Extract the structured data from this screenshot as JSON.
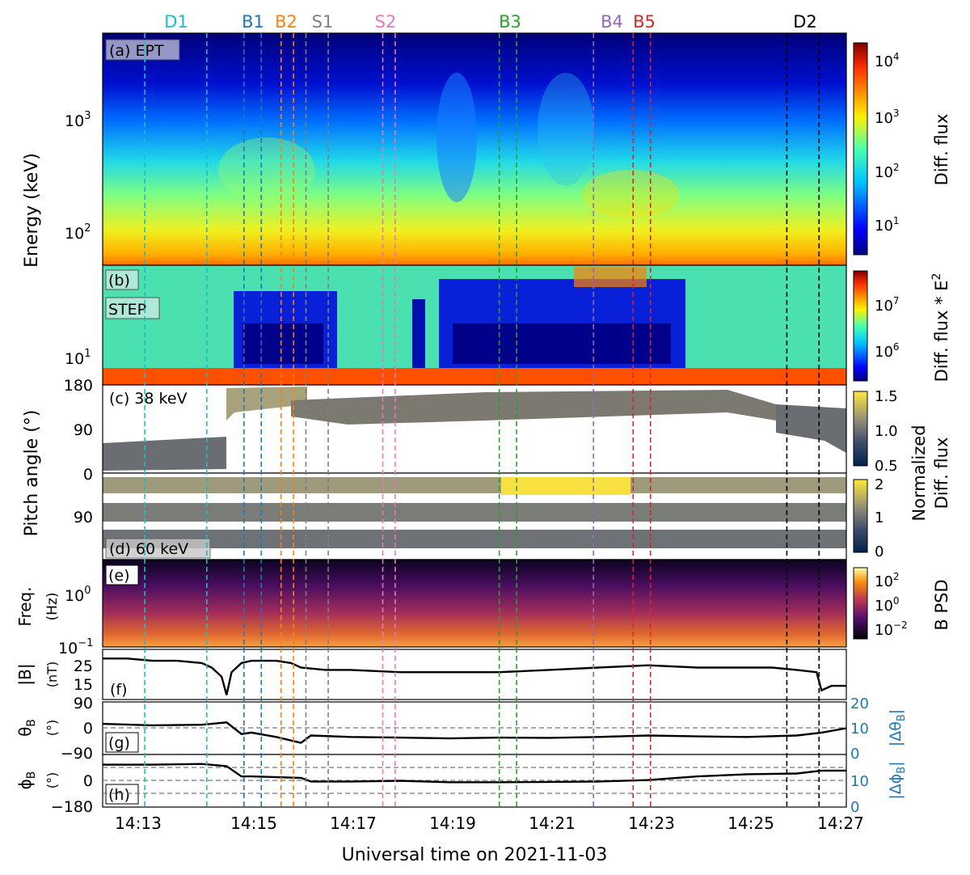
{
  "figure": {
    "xlabel": "Universal time on 2021-11-03",
    "xticks": [
      "14:13",
      "14:15",
      "14:17",
      "14:19",
      "14:21",
      "14:23",
      "14:25",
      "14:27"
    ]
  },
  "events": [
    {
      "label": "D1",
      "color": "#17becf"
    },
    {
      "label": "B1",
      "color": "#1f77b4"
    },
    {
      "label": "B2",
      "color": "#ff7f0e"
    },
    {
      "label": "S1",
      "color": "#7f7f7f"
    },
    {
      "label": "S2",
      "color": "#e377c2"
    },
    {
      "label": "B3",
      "color": "#2ca02c"
    },
    {
      "label": "B4",
      "color": "#9467bd"
    },
    {
      "label": "B5",
      "color": "#d62728"
    },
    {
      "label": "D2",
      "color": "#000000"
    }
  ],
  "panels": {
    "a": {
      "tag": "(a) EPT",
      "ylabel": "Energy (keV)",
      "yticks": [
        "10",
        "10"
      ],
      "yexp": [
        "3",
        "2"
      ],
      "cbar_label": "Diff. flux",
      "cbar_ticks": [
        "10",
        "10",
        "10",
        "10"
      ],
      "cbar_exp": [
        "4",
        "3",
        "2",
        "1"
      ]
    },
    "b": {
      "tag1": "(b)",
      "tag2": "STEP",
      "yticks": [
        "10"
      ],
      "yexp": [
        "1"
      ],
      "cbar_label": "Diff. flux * E",
      "cbar_label_exp": "2",
      "cbar_ticks": [
        "10",
        "10"
      ],
      "cbar_exp": [
        "7",
        "6"
      ]
    },
    "c": {
      "tag": "(c) 38 keV",
      "yticks": [
        "180",
        "90",
        "0"
      ],
      "cbar_ticks": [
        "1.5",
        "1.0",
        "0.5"
      ]
    },
    "d": {
      "tag": "(d) 60 keV",
      "yticks": [
        "0",
        "90"
      ],
      "cbar_ticks": [
        "2",
        "1",
        "0"
      ]
    },
    "cd": {
      "ylabel": "Pitch angle (°)",
      "cbar_label1": "Normalized",
      "cbar_label2": "Diff. flux"
    },
    "e": {
      "tag": "(e)",
      "ylabel1": "Freq.",
      "ylabel2": "(Hz)",
      "yticks": [
        "10",
        "10"
      ],
      "yexp": [
        "0",
        "−1"
      ],
      "cbar_label": "B PSD",
      "cbar_ticks": [
        "10",
        "10",
        "10"
      ],
      "cbar_exp": [
        "2",
        "0",
        "−2"
      ]
    },
    "f": {
      "tag": "(f)",
      "ylabel1": "|B|",
      "ylabel2": "(nT)",
      "yticks": [
        "25",
        "15"
      ]
    },
    "g": {
      "tag": "(g)",
      "ylabel1": "θ",
      "ylabel1_sub": "B",
      "ylabel2": "(°)",
      "yticks": [
        "90",
        "0",
        "−90"
      ],
      "right_ticks": [
        "20",
        "10",
        "0"
      ],
      "right_label": "|Δθ",
      "right_label_sub": "B",
      "right_label_end": "|"
    },
    "h": {
      "tag": "(h)",
      "ylabel1": "ϕ",
      "ylabel1_sub": "B",
      "ylabel2": "(°)",
      "yticks": [
        "0",
        "−180"
      ],
      "right_ticks": [
        "10",
        "0"
      ],
      "right_label": "|Δϕ",
      "right_label_sub": "B",
      "right_label_end": "|"
    }
  },
  "chart_data": {
    "type": "heatmap",
    "title": "",
    "x_range": [
      "14:12",
      "14:27"
    ],
    "events_minutes_after_1412": {
      "D1": 0.85,
      "D1b": 2.1,
      "B1": 2.85,
      "B1b": 3.2,
      "B2": 3.6,
      "B2b": 3.85,
      "S1": 4.1,
      "S1b": 4.55,
      "S2": 5.65,
      "S2b": 5.9,
      "B3": 8.0,
      "B3b": 8.35,
      "B4": 9.9,
      "B5": 10.7,
      "B5b": 11.05,
      "D2": 13.8,
      "D2b": 14.45
    },
    "panel_a": {
      "quantity": "EPT electron diff. flux",
      "y_range_keV": [
        55,
        5000
      ],
      "y_scale": "log",
      "colorbar_range": [
        3,
        25000
      ]
    },
    "panel_b": {
      "quantity": "STEP diff. flux * E^2",
      "y_range_keV": [
        5,
        60
      ],
      "colorbar_range": [
        300000,
        20000000
      ]
    },
    "panel_c": {
      "quantity": "38 keV normalized flux",
      "y_range_deg": [
        0,
        180
      ],
      "colorbar_range": [
        0.5,
        1.5
      ]
    },
    "panel_d": {
      "quantity": "60 keV normalized flux",
      "y_range_deg": [
        0,
        180
      ],
      "colorbar_range": [
        0,
        2
      ]
    },
    "panel_e": {
      "quantity": "B PSD",
      "y_range_Hz": [
        0.1,
        5
      ],
      "colorbar_range": [
        0.003,
        300
      ]
    },
    "panel_f": {
      "type": "line",
      "name": "|B|",
      "unit": "nT",
      "x_min": [
        0,
        0.5,
        1,
        1.5,
        2,
        2.2,
        2.4,
        2.5,
        2.6,
        2.8,
        3,
        3.5,
        3.8,
        4,
        4.5,
        5,
        6,
        7,
        8,
        9,
        10,
        11,
        12,
        13,
        13.5,
        14,
        14.4,
        14.5,
        14.7,
        15
      ],
      "values": [
        28,
        28,
        27,
        27,
        26,
        24,
        20,
        12,
        22,
        26,
        27,
        27,
        26,
        24,
        23,
        23,
        22,
        22,
        22,
        23,
        24,
        25,
        24,
        24,
        24,
        23,
        22,
        14,
        16,
        16
      ]
    },
    "panel_g": {
      "type": "line",
      "name": "θ_B",
      "unit": "deg",
      "x_min": [
        0,
        1,
        2,
        2.5,
        2.8,
        3,
        3.5,
        4,
        4.2,
        5,
        6,
        7,
        8,
        9,
        10,
        11,
        12,
        13,
        14,
        14.5,
        15
      ],
      "values": [
        15,
        10,
        12,
        20,
        -20,
        -15,
        -30,
        -50,
        -25,
        -30,
        -32,
        -35,
        -32,
        -33,
        -30,
        -25,
        -28,
        -30,
        -25,
        -15,
        0
      ]
    },
    "panel_h": {
      "type": "line",
      "name": "ϕ_B",
      "unit": "deg",
      "x_min": [
        0,
        1,
        2,
        2.5,
        2.8,
        3,
        4,
        4.2,
        5,
        6,
        7,
        8,
        9,
        10,
        11,
        12,
        13,
        14,
        14.5,
        15
      ],
      "values": [
        110,
        110,
        115,
        100,
        30,
        30,
        20,
        -5,
        -5,
        0,
        -10,
        -10,
        -8,
        -5,
        5,
        30,
        45,
        50,
        70,
        70
      ]
    }
  }
}
